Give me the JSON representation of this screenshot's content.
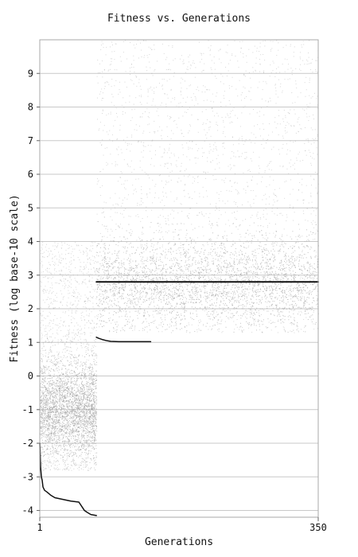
{
  "chart_data": {
    "type": "scatter",
    "title": "Fitness vs. Generations",
    "xlabel": "Generations",
    "ylabel": "Fitness (log base-10 scale)",
    "x_ticks": [
      "1",
      "350"
    ],
    "x_range": [
      1,
      350
    ],
    "y_ticks": [
      "9",
      "8",
      "7",
      "6",
      "5",
      "4",
      "3",
      "2",
      "1",
      "0",
      "-1",
      "-2",
      "-3",
      "-4"
    ],
    "ylim": [
      -4.2,
      10.0
    ],
    "grid": "horizontal",
    "legend": "none",
    "point_color": "#8f8f8f",
    "best_line_color": "#111111",
    "phases": [
      {
        "x_range": [
          1,
          72
        ],
        "y_cloud_center": -1.0,
        "y_cloud_range": [
          -2.8,
          4.0
        ]
      },
      {
        "x_range": [
          72,
          350
        ],
        "y_cloud_center": 2.8,
        "y_cloud_range": [
          1.3,
          10.0
        ]
      }
    ],
    "series": [
      {
        "x": [
          1,
          2,
          3,
          4,
          5,
          7,
          10,
          15,
          20,
          30,
          40,
          50,
          57,
          60,
          65,
          72
        ],
        "y": [
          -2.0,
          -2.7,
          -3.0,
          -3.1,
          -3.3,
          -3.4,
          -3.45,
          -3.55,
          -3.62,
          -3.67,
          -3.72,
          -3.75,
          -4.0,
          -4.05,
          -4.12,
          -4.15
        ]
      },
      {
        "x": [
          72,
          75,
          80,
          85,
          90,
          100,
          120,
          140
        ],
        "y": [
          1.15,
          1.12,
          1.08,
          1.05,
          1.03,
          1.02,
          1.02,
          1.02
        ]
      },
      {
        "x": [
          72,
          100,
          150,
          200,
          250,
          300,
          350
        ],
        "y": [
          2.8,
          2.8,
          2.8,
          2.8,
          2.8,
          2.8,
          2.8
        ]
      }
    ]
  }
}
